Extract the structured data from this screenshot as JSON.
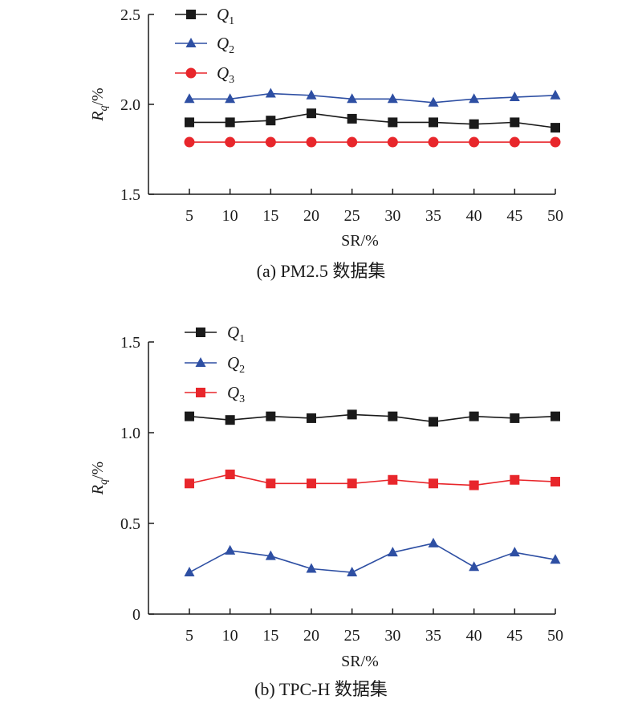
{
  "chart_data": [
    {
      "type": "line",
      "caption": "(a) PM2.5 数据集",
      "xlabel": "SR/%",
      "ylabel_main": "R",
      "ylabel_sub": "q",
      "ylabel_tail": "/%",
      "categories": [
        5,
        10,
        15,
        20,
        25,
        30,
        35,
        40,
        45,
        50
      ],
      "ylim": [
        1.5,
        2.5
      ],
      "yticks": [
        "1.5",
        "2.0",
        "2.5"
      ],
      "ytick_values": [
        1.5,
        2.0,
        2.5
      ],
      "legend_position": "top-left",
      "series": [
        {
          "name": "Q",
          "sub": "1",
          "color": "#1a1a1a",
          "marker": "square",
          "values": [
            1.9,
            1.9,
            1.91,
            1.95,
            1.92,
            1.9,
            1.9,
            1.89,
            1.9,
            1.87
          ]
        },
        {
          "name": "Q",
          "sub": "2",
          "color": "#2e4fa3",
          "marker": "triangle",
          "values": [
            2.03,
            2.03,
            2.06,
            2.05,
            2.03,
            2.03,
            2.01,
            2.03,
            2.04,
            2.05
          ]
        },
        {
          "name": "Q",
          "sub": "3",
          "color": "#e8262b",
          "marker": "circle",
          "values": [
            1.79,
            1.79,
            1.79,
            1.79,
            1.79,
            1.79,
            1.79,
            1.79,
            1.79,
            1.79
          ]
        }
      ]
    },
    {
      "type": "line",
      "caption": "(b) TPC-H 数据集",
      "xlabel": "SR/%",
      "ylabel_main": "R",
      "ylabel_sub": "q",
      "ylabel_tail": "/%",
      "categories": [
        5,
        10,
        15,
        20,
        25,
        30,
        35,
        40,
        45,
        50
      ],
      "ylim": [
        0,
        1.5
      ],
      "yticks": [
        "0",
        "0.5",
        "1.0",
        "1.5"
      ],
      "ytick_values": [
        0,
        0.5,
        1.0,
        1.5
      ],
      "legend_position": "top-left",
      "series": [
        {
          "name": "Q",
          "sub": "1",
          "color": "#1a1a1a",
          "marker": "square",
          "values": [
            1.09,
            1.07,
            1.09,
            1.08,
            1.1,
            1.09,
            1.06,
            1.09,
            1.08,
            1.09
          ]
        },
        {
          "name": "Q",
          "sub": "2",
          "color": "#2e4fa3",
          "marker": "triangle",
          "values": [
            0.23,
            0.35,
            0.32,
            0.25,
            0.23,
            0.34,
            0.39,
            0.26,
            0.34,
            0.3
          ]
        },
        {
          "name": "Q",
          "sub": "3",
          "color": "#e8262b",
          "marker": "square",
          "values": [
            0.72,
            0.77,
            0.72,
            0.72,
            0.72,
            0.74,
            0.72,
            0.71,
            0.74,
            0.73
          ]
        }
      ]
    }
  ]
}
